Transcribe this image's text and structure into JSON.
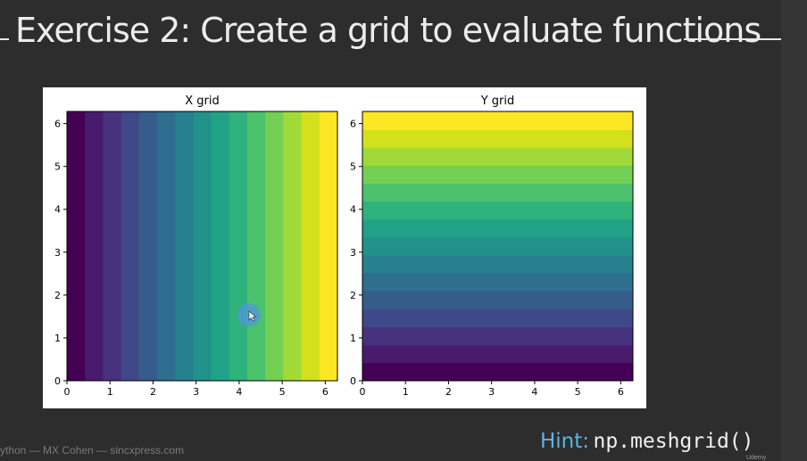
{
  "slide": {
    "title": "Exercise 2: Create a grid to evaluate functions",
    "footer": "ython — MX Cohen — sincxpress.com",
    "hint_label": "Hint:",
    "hint_code": "np.meshgrid()",
    "watermark": "Udemy"
  },
  "colors": {
    "background": "#2d2d2d",
    "hint_accent": "#5bb6e0",
    "viridis": [
      "#440154",
      "#48186a",
      "#472d7b",
      "#424086",
      "#3b528b",
      "#33638d",
      "#2c728e",
      "#26828e",
      "#21918c",
      "#1fa088",
      "#28ae80",
      "#3fbc73",
      "#5ec962",
      "#84d44b",
      "#addc30",
      "#d8e219",
      "#fde725"
    ]
  },
  "chart_data": [
    {
      "type": "heatmap",
      "title": "X grid",
      "orientation": "vertical-bands",
      "xlabel": "",
      "ylabel": "",
      "xlim": [
        0,
        6.2832
      ],
      "ylim": [
        0,
        6.2832
      ],
      "xticks": [
        "0",
        "1",
        "2",
        "3",
        "4",
        "5",
        "6"
      ],
      "yticks": [
        "0",
        "1",
        "2",
        "3",
        "4",
        "5",
        "6"
      ],
      "bands": 15,
      "grid": false
    },
    {
      "type": "heatmap",
      "title": "Y grid",
      "orientation": "horizontal-bands",
      "xlabel": "",
      "ylabel": "",
      "xlim": [
        0,
        6.2832
      ],
      "ylim": [
        0,
        6.2832
      ],
      "xticks": [
        "0",
        "1",
        "2",
        "3",
        "4",
        "5",
        "6"
      ],
      "yticks": [
        "0",
        "1",
        "2",
        "3",
        "4",
        "5",
        "6"
      ],
      "bands": 15,
      "grid": false
    }
  ]
}
